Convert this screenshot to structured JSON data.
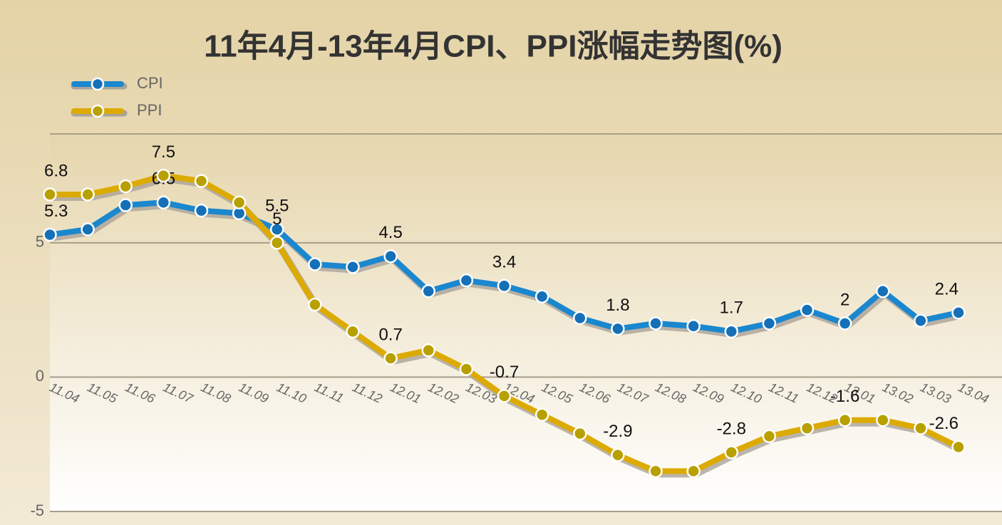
{
  "chart_data": {
    "type": "line",
    "title": "11年4月-13年4月CPI、PPI涨幅走势图(%)",
    "categories": [
      "11.04",
      "11.05",
      "11.06",
      "11.07",
      "11.08",
      "11.09",
      "11.10",
      "11.11",
      "11.12",
      "12.01",
      "12.02",
      "12.03",
      "12.04",
      "12.05",
      "12.06",
      "12.07",
      "12.08",
      "12.09",
      "12.10",
      "12.11",
      "12.12",
      "13.01",
      "13.02",
      "13.03",
      "13.04"
    ],
    "series": [
      {
        "name": "CPI",
        "color": "#1a87cf",
        "values": [
          5.3,
          5.5,
          6.4,
          6.5,
          6.2,
          6.1,
          5.5,
          4.2,
          4.1,
          4.5,
          3.2,
          3.6,
          3.4,
          3.0,
          2.2,
          1.8,
          2.0,
          1.9,
          1.7,
          2.0,
          2.5,
          2.0,
          3.2,
          2.1,
          2.4
        ],
        "value_labels": [
          "5.3",
          null,
          null,
          "6.5",
          null,
          null,
          "5.5",
          null,
          null,
          "4.5",
          null,
          null,
          "3.4",
          null,
          null,
          "1.8",
          null,
          null,
          "1.7",
          null,
          null,
          "2",
          null,
          null,
          "2.4"
        ]
      },
      {
        "name": "PPI",
        "color": "#dcaa00",
        "values": [
          6.8,
          6.8,
          7.1,
          7.5,
          7.3,
          6.5,
          5.0,
          2.7,
          1.7,
          0.7,
          1.0,
          0.3,
          -0.7,
          -1.4,
          -2.1,
          -2.9,
          -3.5,
          -3.5,
          -2.8,
          -2.2,
          -1.9,
          -1.6,
          -1.6,
          -1.9,
          -2.6
        ],
        "value_labels": [
          "6.8",
          null,
          null,
          "7.5",
          null,
          null,
          "5",
          null,
          null,
          "0.7",
          null,
          null,
          "-0.7",
          null,
          null,
          "-2.9",
          null,
          null,
          "-2.8",
          null,
          null,
          "-1.6",
          null,
          null,
          "-2.6"
        ]
      }
    ],
    "ylim": [
      -5,
      9
    ],
    "yticks": [
      -5,
      0,
      5
    ],
    "grid": true
  }
}
